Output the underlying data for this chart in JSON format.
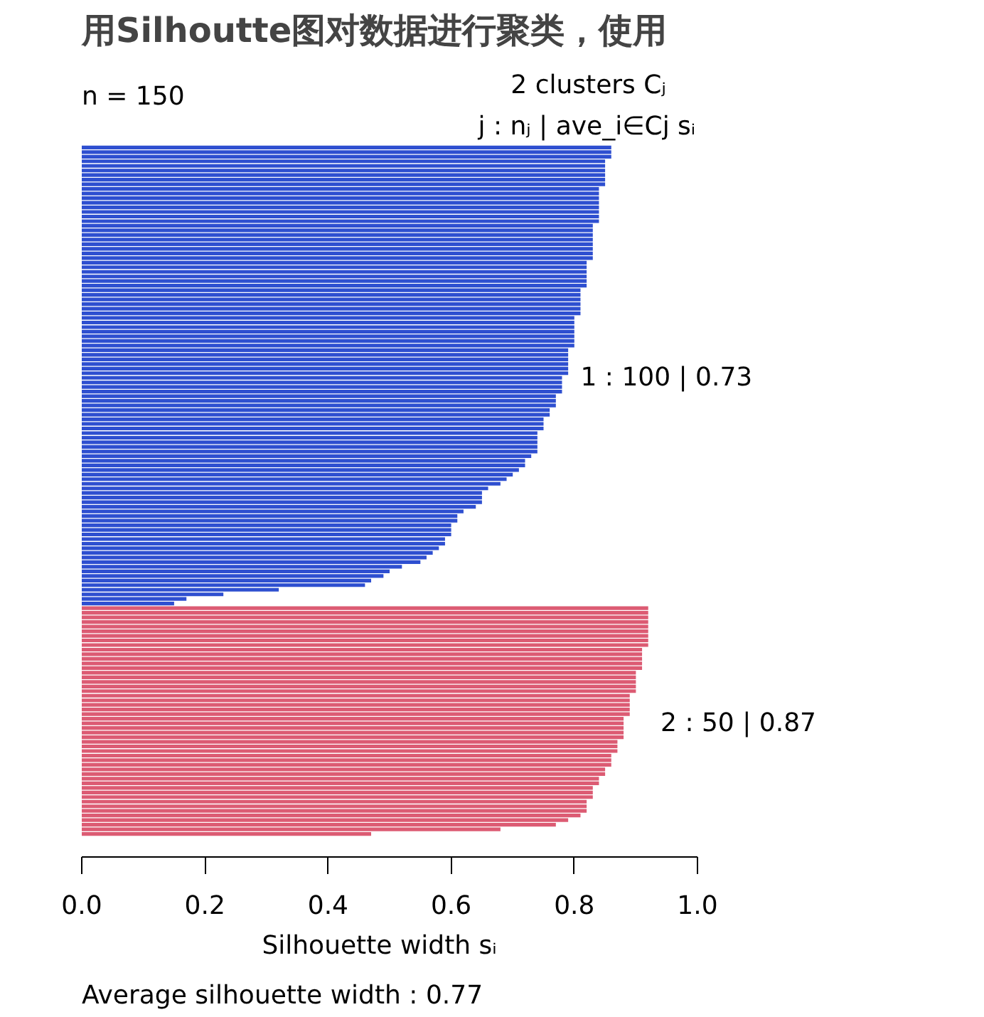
{
  "chart_data": {
    "type": "bar",
    "orientation": "horizontal",
    "title": "用Silhoutte图对数据进行聚类，使用",
    "xlabel": "Silhouette width sᵢ",
    "annotations": [
      "n = 150",
      "2  clusters  Cⱼ",
      "j :  nⱼ | ave_i∈Cj  sᵢ",
      "1 :   100  |  0.73",
      "2 :   50  |  0.87",
      "Average silhouette width :  0.77"
    ],
    "categories": [
      null,
      null,
      null,
      null,
      null,
      null,
      null,
      null,
      null,
      null,
      null,
      null,
      null,
      null,
      null,
      null,
      null,
      null,
      null,
      null,
      null,
      null,
      null,
      null,
      null,
      null,
      null,
      null,
      null,
      null,
      null,
      null,
      null,
      null,
      null,
      null,
      null,
      null,
      null,
      null,
      null,
      null,
      null,
      null,
      null,
      null,
      null,
      null,
      null,
      null,
      null,
      null,
      null,
      null,
      null,
      null,
      null,
      null,
      null,
      null,
      null,
      null,
      null,
      null,
      null,
      null,
      null,
      null,
      null,
      null,
      null,
      null,
      null,
      null,
      null,
      null,
      null,
      null,
      null,
      null,
      null,
      null,
      null,
      null,
      null,
      null,
      null,
      null,
      null,
      null,
      null,
      null,
      null,
      null,
      null,
      null,
      null,
      null,
      null,
      null,
      null,
      null,
      null,
      null,
      null,
      null,
      null,
      null,
      null,
      null,
      null,
      null,
      null,
      null,
      null,
      null,
      null,
      null,
      null,
      null,
      null,
      null,
      null,
      null,
      null,
      null,
      null,
      null,
      null,
      null,
      null,
      null,
      null,
      null,
      null,
      null,
      null,
      null,
      null,
      null,
      null,
      null,
      null,
      null,
      null,
      null,
      null,
      null,
      null,
      null
    ],
    "values": [
      0.86,
      0.86,
      0.86,
      0.85,
      0.85,
      0.85,
      0.85,
      0.85,
      0.85,
      0.84,
      0.84,
      0.84,
      0.84,
      0.84,
      0.84,
      0.84,
      0.84,
      0.83,
      0.83,
      0.83,
      0.83,
      0.83,
      0.83,
      0.83,
      0.83,
      0.82,
      0.82,
      0.82,
      0.82,
      0.82,
      0.82,
      0.81,
      0.81,
      0.81,
      0.81,
      0.81,
      0.81,
      0.8,
      0.8,
      0.8,
      0.8,
      0.8,
      0.8,
      0.8,
      0.79,
      0.79,
      0.79,
      0.79,
      0.79,
      0.79,
      0.78,
      0.78,
      0.78,
      0.78,
      0.77,
      0.77,
      0.77,
      0.76,
      0.76,
      0.75,
      0.75,
      0.75,
      0.74,
      0.74,
      0.74,
      0.74,
      0.74,
      0.73,
      0.72,
      0.72,
      0.71,
      0.7,
      0.69,
      0.68,
      0.66,
      0.65,
      0.65,
      0.65,
      0.64,
      0.62,
      0.61,
      0.61,
      0.6,
      0.6,
      0.6,
      0.59,
      0.59,
      0.58,
      0.57,
      0.56,
      0.55,
      0.52,
      0.5,
      0.49,
      0.47,
      0.46,
      0.32,
      0.23,
      0.17,
      0.15,
      0.92,
      0.92,
      0.92,
      0.92,
      0.92,
      0.92,
      0.92,
      0.92,
      0.92,
      0.91,
      0.91,
      0.91,
      0.91,
      0.91,
      0.9,
      0.9,
      0.9,
      0.9,
      0.9,
      0.89,
      0.89,
      0.89,
      0.89,
      0.89,
      0.88,
      0.88,
      0.88,
      0.88,
      0.88,
      0.87,
      0.87,
      0.87,
      0.86,
      0.86,
      0.86,
      0.85,
      0.85,
      0.84,
      0.84,
      0.83,
      0.83,
      0.83,
      0.82,
      0.82,
      0.82,
      0.81,
      0.79,
      0.77,
      0.68,
      0.47
    ],
    "colors": [
      "#2e4fd0",
      "#2e4fd0",
      "#2e4fd0",
      "#2e4fd0",
      "#2e4fd0",
      "#2e4fd0",
      "#2e4fd0",
      "#2e4fd0",
      "#2e4fd0",
      "#2e4fd0",
      "#2e4fd0",
      "#2e4fd0",
      "#2e4fd0",
      "#2e4fd0",
      "#2e4fd0",
      "#2e4fd0",
      "#2e4fd0",
      "#2e4fd0",
      "#2e4fd0",
      "#2e4fd0",
      "#2e4fd0",
      "#2e4fd0",
      "#2e4fd0",
      "#2e4fd0",
      "#2e4fd0",
      "#2e4fd0",
      "#2e4fd0",
      "#2e4fd0",
      "#2e4fd0",
      "#2e4fd0",
      "#2e4fd0",
      "#2e4fd0",
      "#2e4fd0",
      "#2e4fd0",
      "#2e4fd0",
      "#2e4fd0",
      "#2e4fd0",
      "#2e4fd0",
      "#2e4fd0",
      "#2e4fd0",
      "#2e4fd0",
      "#2e4fd0",
      "#2e4fd0",
      "#2e4fd0",
      "#2e4fd0",
      "#2e4fd0",
      "#2e4fd0",
      "#2e4fd0",
      "#2e4fd0",
      "#2e4fd0",
      "#2e4fd0",
      "#2e4fd0",
      "#2e4fd0",
      "#2e4fd0",
      "#2e4fd0",
      "#2e4fd0",
      "#2e4fd0",
      "#2e4fd0",
      "#2e4fd0",
      "#2e4fd0",
      "#2e4fd0",
      "#2e4fd0",
      "#2e4fd0",
      "#2e4fd0",
      "#2e4fd0",
      "#2e4fd0",
      "#2e4fd0",
      "#2e4fd0",
      "#2e4fd0",
      "#2e4fd0",
      "#2e4fd0",
      "#2e4fd0",
      "#2e4fd0",
      "#2e4fd0",
      "#2e4fd0",
      "#2e4fd0",
      "#2e4fd0",
      "#2e4fd0",
      "#2e4fd0",
      "#2e4fd0",
      "#2e4fd0",
      "#2e4fd0",
      "#2e4fd0",
      "#2e4fd0",
      "#2e4fd0",
      "#2e4fd0",
      "#2e4fd0",
      "#2e4fd0",
      "#2e4fd0",
      "#2e4fd0",
      "#2e4fd0",
      "#2e4fd0",
      "#2e4fd0",
      "#2e4fd0",
      "#2e4fd0",
      "#2e4fd0",
      "#2e4fd0",
      "#2e4fd0",
      "#2e4fd0",
      "#2e4fd0",
      "#dc5b73",
      "#dc5b73",
      "#dc5b73",
      "#dc5b73",
      "#dc5b73",
      "#dc5b73",
      "#dc5b73",
      "#dc5b73",
      "#dc5b73",
      "#dc5b73",
      "#dc5b73",
      "#dc5b73",
      "#dc5b73",
      "#dc5b73",
      "#dc5b73",
      "#dc5b73",
      "#dc5b73",
      "#dc5b73",
      "#dc5b73",
      "#dc5b73",
      "#dc5b73",
      "#dc5b73",
      "#dc5b73",
      "#dc5b73",
      "#dc5b73",
      "#dc5b73",
      "#dc5b73",
      "#dc5b73",
      "#dc5b73",
      "#dc5b73",
      "#dc5b73",
      "#dc5b73",
      "#dc5b73",
      "#dc5b73",
      "#dc5b73",
      "#dc5b73",
      "#dc5b73",
      "#dc5b73",
      "#dc5b73",
      "#dc5b73",
      "#dc5b73",
      "#dc5b73",
      "#dc5b73",
      "#dc5b73",
      "#dc5b73",
      "#dc5b73",
      "#dc5b73",
      "#dc5b73",
      "#dc5b73",
      "#dc5b73"
    ],
    "xlim": [
      0,
      1
    ],
    "xticks": [
      {
        "value": 0,
        "label": "0.0"
      },
      0.2,
      0.4,
      0.6,
      0.8,
      {
        "value": 1,
        "label": "1.0"
      }
    ],
    "grid": false,
    "tick_labels": "x"
  }
}
